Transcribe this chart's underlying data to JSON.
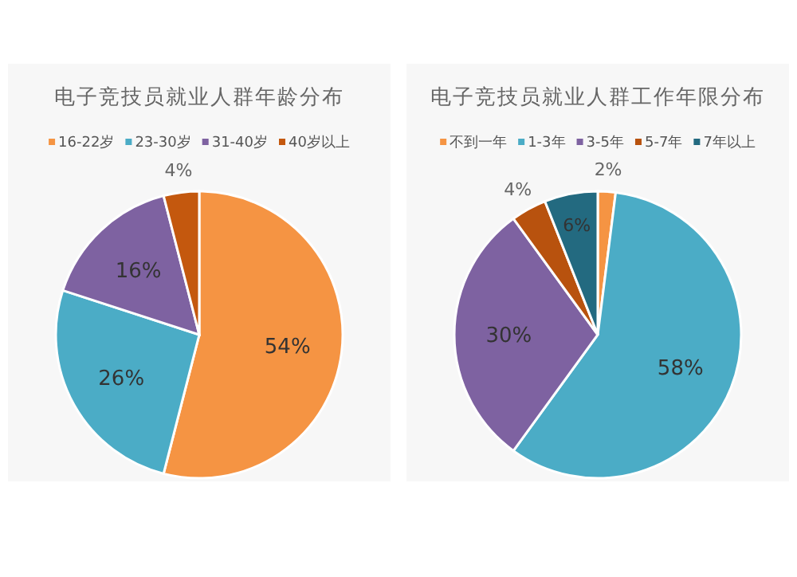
{
  "chart_data": [
    {
      "type": "pie",
      "title": "电子竞技员就业人群年龄分布",
      "categories": [
        "16-22岁",
        "23-30岁",
        "31-40岁",
        "40岁以上"
      ],
      "values": [
        54,
        26,
        16,
        4
      ],
      "value_labels": [
        "54%",
        "26%",
        "16%",
        "4%"
      ],
      "colors": [
        "#f59443",
        "#4bacc6",
        "#7e62a1",
        "#c4580e"
      ],
      "legend": "top"
    },
    {
      "type": "pie",
      "title": "电子竞技员就业人群工作年限分布",
      "categories": [
        "不到一年",
        "1-3年",
        "3-5年",
        "5-7年",
        "7年以上"
      ],
      "values": [
        2,
        58,
        30,
        4,
        6
      ],
      "value_labels": [
        "2%",
        "58%",
        "30%",
        "4%",
        "6%"
      ],
      "colors": [
        "#f59443",
        "#4bacc6",
        "#7e62a1",
        "#b8520e",
        "#236a80"
      ],
      "legend": "top"
    }
  ]
}
